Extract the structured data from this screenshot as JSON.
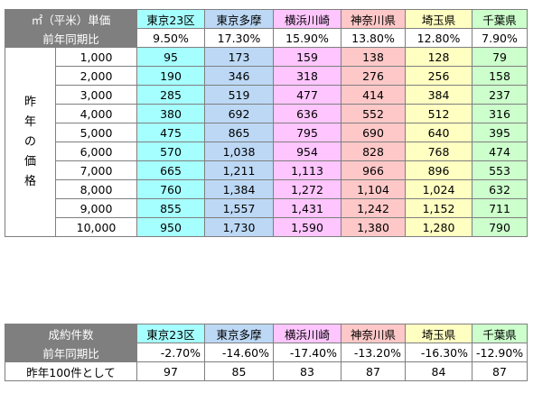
{
  "columns": [
    "東京23区",
    "東京多摩",
    "横浜川崎",
    "神奈川県",
    "埼玉県",
    "千葉県"
  ],
  "bg_classes": [
    "bg0",
    "bg1",
    "bg2",
    "bg3",
    "bg4",
    "bg5"
  ],
  "price_table": {
    "header_label": "㎡（平米）単価",
    "yoy_label": "前年同期比",
    "yoy": [
      "9.50%",
      "17.30%",
      "15.90%",
      "13.80%",
      "12.80%",
      "7.90%"
    ],
    "side_label_chars": [
      "昨",
      "年",
      "の",
      "価",
      "格"
    ],
    "rows": [
      {
        "base": "1,000",
        "values": [
          "95",
          "173",
          "159",
          "138",
          "128",
          "79"
        ]
      },
      {
        "base": "2,000",
        "values": [
          "190",
          "346",
          "318",
          "276",
          "256",
          "158"
        ]
      },
      {
        "base": "3,000",
        "values": [
          "285",
          "519",
          "477",
          "414",
          "384",
          "237"
        ]
      },
      {
        "base": "4,000",
        "values": [
          "380",
          "692",
          "636",
          "552",
          "512",
          "316"
        ]
      },
      {
        "base": "5,000",
        "values": [
          "475",
          "865",
          "795",
          "690",
          "640",
          "395"
        ]
      },
      {
        "base": "6,000",
        "values": [
          "570",
          "1,038",
          "954",
          "828",
          "768",
          "474"
        ]
      },
      {
        "base": "7,000",
        "values": [
          "665",
          "1,211",
          "1,113",
          "966",
          "896",
          "553"
        ]
      },
      {
        "base": "8,000",
        "values": [
          "760",
          "1,384",
          "1,272",
          "1,104",
          "1,024",
          "632"
        ]
      },
      {
        "base": "9,000",
        "values": [
          "855",
          "1,557",
          "1,431",
          "1,242",
          "1,152",
          "711"
        ]
      },
      {
        "base": "10,000",
        "values": [
          "950",
          "1,730",
          "1,590",
          "1,380",
          "1,280",
          "790"
        ]
      }
    ]
  },
  "deals_table": {
    "header_label": "成約件数",
    "yoy_label": "前年同期比",
    "yoy": [
      "-2.70%",
      "-14.60%",
      "-17.40%",
      "-13.20%",
      "-16.30%",
      "-12.90%"
    ],
    "base_label": "昨年100件として",
    "base_values": [
      "97",
      "85",
      "83",
      "87",
      "84",
      "87"
    ]
  }
}
